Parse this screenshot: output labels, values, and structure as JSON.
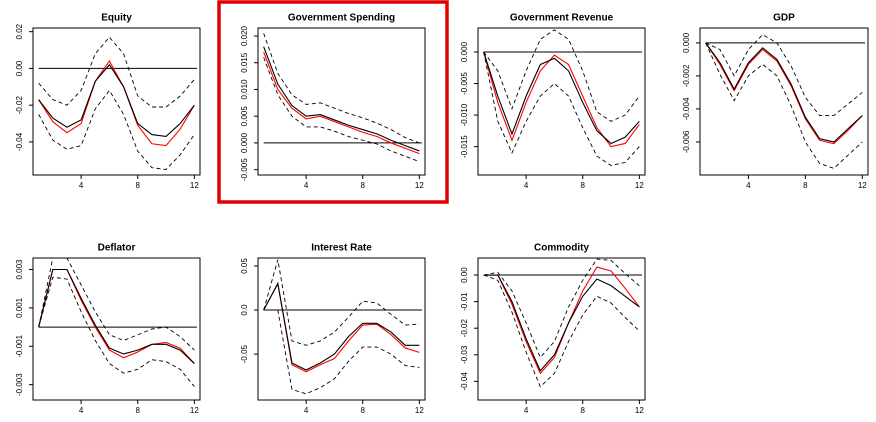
{
  "chart_data": [
    {
      "type": "line",
      "title": "Equity",
      "x": [
        1,
        2,
        3,
        4,
        5,
        6,
        7,
        8,
        9,
        10,
        11,
        12
      ],
      "xlim": [
        0.6,
        12.4
      ],
      "xticks": [
        4,
        8,
        12
      ],
      "ylim": [
        -0.058,
        0.022
      ],
      "yticks": [
        0.02,
        {
          "value": 0,
          "label": "0.00"
        },
        -0.02,
        -0.04
      ],
      "hline": 0,
      "series": [
        {
          "color": "#000000",
          "dash": true,
          "values": [
            -0.008,
            -0.017,
            -0.02,
            -0.012,
            0.008,
            0.017,
            0.008,
            -0.015,
            -0.021,
            -0.021,
            -0.015,
            -0.006
          ]
        },
        {
          "color": "#000000",
          "dash": true,
          "values": [
            -0.025,
            -0.039,
            -0.044,
            -0.042,
            -0.022,
            -0.012,
            -0.025,
            -0.045,
            -0.054,
            -0.055,
            -0.047,
            -0.036
          ]
        },
        {
          "color": "#ff0000",
          "dash": false,
          "values": [
            -0.017,
            -0.029,
            -0.035,
            -0.03,
            -0.007,
            0.004,
            -0.01,
            -0.031,
            -0.041,
            -0.042,
            -0.033,
            -0.02
          ]
        },
        {
          "color": "#000000",
          "dash": false,
          "values": [
            -0.017,
            -0.027,
            -0.032,
            -0.028,
            -0.007,
            0.002,
            -0.01,
            -0.03,
            -0.036,
            -0.037,
            -0.03,
            -0.02
          ]
        }
      ]
    },
    {
      "type": "line",
      "title": "Government Spending",
      "x": [
        1,
        2,
        3,
        4,
        5,
        6,
        7,
        8,
        9,
        10,
        11,
        12
      ],
      "xlim": [
        0.6,
        12.4
      ],
      "xticks": [
        4,
        8,
        12
      ],
      "ylim": [
        -0.006,
        0.0215
      ],
      "yticks": [
        {
          "value": 0.02,
          "label": "0.020"
        },
        0.015,
        {
          "value": 0.01,
          "label": "0.010"
        },
        0.005,
        {
          "value": 0,
          "label": "0.000"
        },
        -0.005
      ],
      "hline": 0,
      "highlight": true,
      "series": [
        {
          "color": "#000000",
          "dash": true,
          "values": [
            0.0205,
            0.013,
            0.009,
            0.0072,
            0.0075,
            0.0065,
            0.0055,
            0.0047,
            0.0037,
            0.0025,
            0.001,
            0.0
          ]
        },
        {
          "color": "#000000",
          "dash": true,
          "values": [
            0.016,
            0.009,
            0.005,
            0.003,
            0.003,
            0.0022,
            0.0012,
            0.0005,
            -0.0002,
            -0.0015,
            -0.0025,
            -0.0035
          ]
        },
        {
          "color": "#ff0000",
          "dash": false,
          "values": [
            0.017,
            0.01,
            0.0065,
            0.0045,
            0.005,
            0.004,
            0.003,
            0.002,
            0.0012,
            0.0,
            -0.001,
            -0.002
          ]
        },
        {
          "color": "#000000",
          "dash": false,
          "values": [
            0.018,
            0.011,
            0.007,
            0.005,
            0.0053,
            0.0043,
            0.0033,
            0.0025,
            0.0017,
            0.0005,
            -0.0005,
            -0.0015
          ]
        }
      ]
    },
    {
      "type": "line",
      "title": "Government Revenue",
      "x": [
        1,
        2,
        3,
        4,
        5,
        6,
        7,
        8,
        9,
        10,
        11,
        12
      ],
      "xlim": [
        0.6,
        12.4
      ],
      "xticks": [
        4,
        8,
        12
      ],
      "ylim": [
        -0.0195,
        0.0038
      ],
      "yticks": [
        {
          "value": 0,
          "label": "0.000"
        },
        -0.005,
        {
          "value": -0.01,
          "label": "-0.010"
        },
        -0.015
      ],
      "hline": 0,
      "series": [
        {
          "color": "#000000",
          "dash": true,
          "values": [
            0,
            -0.003,
            -0.009,
            -0.003,
            0.002,
            0.0035,
            0.002,
            -0.003,
            -0.0095,
            -0.011,
            -0.01,
            -0.007
          ]
        },
        {
          "color": "#000000",
          "dash": true,
          "values": [
            0,
            -0.011,
            -0.016,
            -0.011,
            -0.007,
            -0.005,
            -0.007,
            -0.012,
            -0.0165,
            -0.018,
            -0.0175,
            -0.015
          ]
        },
        {
          "color": "#ff0000",
          "dash": false,
          "values": [
            0,
            -0.008,
            -0.014,
            -0.008,
            -0.003,
            -0.0005,
            -0.002,
            -0.007,
            -0.012,
            -0.015,
            -0.0145,
            -0.0115
          ]
        },
        {
          "color": "#000000",
          "dash": false,
          "values": [
            0,
            -0.007,
            -0.013,
            -0.007,
            -0.002,
            -0.001,
            -0.003,
            -0.008,
            -0.0125,
            -0.0145,
            -0.0135,
            -0.011
          ]
        }
      ]
    },
    {
      "type": "line",
      "title": "GDP",
      "x": [
        1,
        2,
        3,
        4,
        5,
        6,
        7,
        8,
        9,
        10,
        11,
        12
      ],
      "xlim": [
        0.6,
        12.4
      ],
      "xticks": [
        4,
        8,
        12
      ],
      "ylim": [
        -0.008,
        0.0009
      ],
      "yticks": [
        {
          "value": 0,
          "label": "0.000"
        },
        -0.002,
        -0.004,
        -0.006
      ],
      "hline": 0,
      "series": [
        {
          "color": "#000000",
          "dash": true,
          "values": [
            0,
            -0.0004,
            -0.002,
            -0.0004,
            0.0005,
            0.0,
            -0.0014,
            -0.0033,
            -0.0044,
            -0.0044,
            -0.0037,
            -0.003
          ]
        },
        {
          "color": "#000000",
          "dash": true,
          "values": [
            0,
            -0.0019,
            -0.0035,
            -0.002,
            -0.0013,
            -0.002,
            -0.0038,
            -0.006,
            -0.0073,
            -0.0076,
            -0.0068,
            -0.006
          ]
        },
        {
          "color": "#ff0000",
          "dash": false,
          "values": [
            0,
            -0.0013,
            -0.0029,
            -0.0013,
            -0.0004,
            -0.0011,
            -0.0026,
            -0.0046,
            -0.0059,
            -0.0061,
            -0.0053,
            -0.0044
          ]
        },
        {
          "color": "#000000",
          "dash": false,
          "values": [
            0,
            -0.0012,
            -0.0028,
            -0.0012,
            -0.0003,
            -0.001,
            -0.0025,
            -0.0045,
            -0.0058,
            -0.006,
            -0.0052,
            -0.0044
          ]
        }
      ]
    },
    {
      "type": "line",
      "title": "Deflator",
      "x": [
        1,
        2,
        3,
        4,
        5,
        6,
        7,
        8,
        9,
        10,
        11,
        12
      ],
      "xlim": [
        0.6,
        12.4
      ],
      "xticks": [
        4,
        8,
        12
      ],
      "ylim": [
        -0.0038,
        0.0036
      ],
      "yticks": [
        0.003,
        0.001,
        -0.001,
        -0.003
      ],
      "hline": 0,
      "series": [
        {
          "color": "#000000",
          "dash": true,
          "values": [
            0,
            0.0036,
            0.0036,
            0.0022,
            0.0008,
            -0.0004,
            -0.0007,
            -0.0004,
            -0.0001,
            0.0,
            -0.0005,
            -0.0012
          ]
        },
        {
          "color": "#000000",
          "dash": true,
          "values": [
            0,
            0.0026,
            0.0025,
            0.0008,
            -0.0007,
            -0.0019,
            -0.0024,
            -0.0022,
            -0.0017,
            -0.0018,
            -0.0022,
            -0.0031
          ]
        },
        {
          "color": "#ff0000",
          "dash": false,
          "values": [
            0,
            0.003,
            0.003,
            0.0014,
            0.0,
            -0.0012,
            -0.0016,
            -0.0013,
            -0.0009,
            -0.0008,
            -0.0011,
            -0.0019
          ]
        },
        {
          "color": "#000000",
          "dash": false,
          "values": [
            0,
            0.003,
            0.003,
            0.0015,
            0.0001,
            -0.0011,
            -0.0014,
            -0.0012,
            -0.0009,
            -0.0009,
            -0.0012,
            -0.0019
          ]
        }
      ]
    },
    {
      "type": "line",
      "title": "Interest Rate",
      "x": [
        1,
        2,
        3,
        4,
        5,
        6,
        7,
        8,
        9,
        10,
        11,
        12
      ],
      "xlim": [
        0.6,
        12.4
      ],
      "xticks": [
        4,
        8,
        12
      ],
      "ylim": [
        -0.102,
        0.059
      ],
      "yticks": [
        0.05,
        {
          "value": 0,
          "label": "0.0"
        },
        -0.05
      ],
      "hline": 0,
      "series": [
        {
          "color": "#000000",
          "dash": true,
          "values": [
            0,
            0.057,
            -0.035,
            -0.04,
            -0.035,
            -0.025,
            -0.008,
            0.01,
            0.008,
            -0.005,
            -0.017,
            -0.016
          ]
        },
        {
          "color": "#000000",
          "dash": true,
          "values": [
            0,
            0.0,
            -0.09,
            -0.095,
            -0.088,
            -0.078,
            -0.058,
            -0.042,
            -0.042,
            -0.05,
            -0.063,
            -0.065
          ]
        },
        {
          "color": "#ff0000",
          "dash": false,
          "values": [
            0,
            0.03,
            -0.062,
            -0.07,
            -0.062,
            -0.055,
            -0.035,
            -0.017,
            -0.016,
            -0.028,
            -0.043,
            -0.048
          ]
        },
        {
          "color": "#000000",
          "dash": false,
          "values": [
            0,
            0.03,
            -0.06,
            -0.068,
            -0.06,
            -0.05,
            -0.03,
            -0.015,
            -0.015,
            -0.025,
            -0.04,
            -0.04
          ]
        }
      ]
    },
    {
      "type": "line",
      "title": "Commodity",
      "x": [
        1,
        2,
        3,
        4,
        5,
        6,
        7,
        8,
        9,
        10,
        11,
        12
      ],
      "xlim": [
        0.6,
        12.4
      ],
      "xticks": [
        4,
        8,
        12
      ],
      "ylim": [
        -0.047,
        0.0064
      ],
      "yticks": [
        {
          "value": 0,
          "label": "0.00"
        },
        -0.01,
        -0.02,
        -0.03,
        -0.04
      ],
      "hline": 0,
      "series": [
        {
          "color": "#000000",
          "dash": true,
          "values": [
            0,
            0.001,
            -0.006,
            -0.018,
            -0.031,
            -0.025,
            -0.012,
            -0.002,
            0.006,
            0.0055,
            0.0005,
            -0.004
          ]
        },
        {
          "color": "#000000",
          "dash": true,
          "values": [
            0,
            -0.002,
            -0.014,
            -0.029,
            -0.042,
            -0.037,
            -0.025,
            -0.015,
            -0.008,
            -0.0105,
            -0.016,
            -0.021
          ]
        },
        {
          "color": "#ff0000",
          "dash": false,
          "values": [
            0,
            0,
            -0.011,
            -0.025,
            -0.037,
            -0.031,
            -0.018,
            -0.006,
            0.003,
            0.0015,
            -0.005,
            -0.012
          ]
        },
        {
          "color": "#000000",
          "dash": false,
          "values": [
            0,
            0.0,
            -0.01,
            -0.024,
            -0.036,
            -0.03,
            -0.018,
            -0.008,
            -0.0015,
            -0.004,
            -0.008,
            -0.012
          ]
        }
      ]
    }
  ]
}
